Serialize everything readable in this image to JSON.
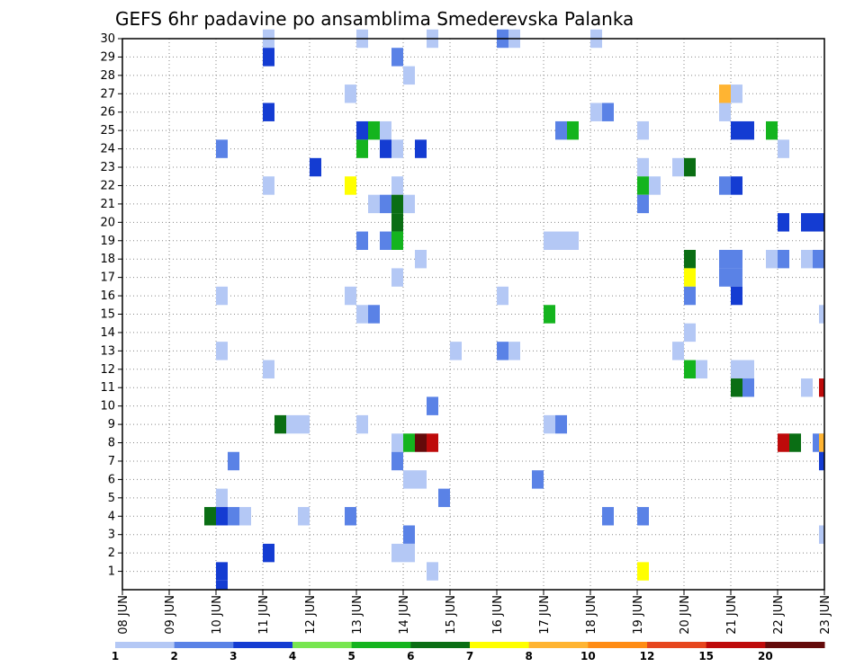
{
  "chart_data": {
    "type": "heatmap",
    "title": "GEFS 6hr padavine po ansamblima Smederevska Palanka",
    "xlabel": "",
    "ylabel": "",
    "x_tick_labels": [
      "08 JUN",
      "09 JUN",
      "10 JUN",
      "11 JUN",
      "12 JUN",
      "13 JUN",
      "14 JUN",
      "15 JUN",
      "16 JUN",
      "17 JUN",
      "18 JUN",
      "19 JUN",
      "20 JUN",
      "21 JUN",
      "22 JUN",
      "23 JUN"
    ],
    "x_range_days": [
      0,
      15
    ],
    "y_range": [
      0,
      30
    ],
    "y_tick_labels": [
      1,
      2,
      3,
      4,
      5,
      6,
      7,
      8,
      9,
      10,
      11,
      12,
      13,
      14,
      15,
      16,
      17,
      18,
      19,
      20,
      21,
      22,
      23,
      24,
      25,
      26,
      27,
      28,
      29,
      30
    ],
    "grid": true,
    "legend": {
      "placement": "bottom",
      "levels": [
        1,
        2,
        3,
        4,
        5,
        6,
        7,
        8,
        10,
        12,
        15,
        20
      ],
      "colors": [
        "#b4c8f5",
        "#5a82e6",
        "#143cd2",
        "#78e650",
        "#14b41e",
        "#0a6e14",
        "#ffff00",
        "#ffb432",
        "#ff8c14",
        "#e6461e",
        "#be0a0a",
        "#640a0a"
      ]
    },
    "cells": [
      {
        "member": 30,
        "day": 3.0,
        "value": 1
      },
      {
        "member": 30,
        "day": 5.0,
        "value": 1
      },
      {
        "member": 30,
        "day": 6.5,
        "value": 1
      },
      {
        "member": 30,
        "day": 8.0,
        "value": 2
      },
      {
        "member": 30,
        "day": 8.25,
        "value": 1
      },
      {
        "member": 30,
        "day": 10.0,
        "value": 1
      },
      {
        "member": 29,
        "day": 3.0,
        "value": 3
      },
      {
        "member": 29,
        "day": 5.75,
        "value": 2
      },
      {
        "member": 28,
        "day": 6.0,
        "value": 1
      },
      {
        "member": 27,
        "day": 4.75,
        "value": 1
      },
      {
        "member": 27,
        "day": 12.75,
        "value": 8
      },
      {
        "member": 27,
        "day": 13.0,
        "value": 1
      },
      {
        "member": 26,
        "day": 3.0,
        "value": 3
      },
      {
        "member": 26,
        "day": 10.0,
        "value": 1
      },
      {
        "member": 26,
        "day": 10.25,
        "value": 2
      },
      {
        "member": 26,
        "day": 12.75,
        "value": 1
      },
      {
        "member": 25,
        "day": 5.0,
        "value": 3
      },
      {
        "member": 25,
        "day": 5.25,
        "value": 5
      },
      {
        "member": 25,
        "day": 5.5,
        "value": 1
      },
      {
        "member": 25,
        "day": 9.25,
        "value": 2
      },
      {
        "member": 25,
        "day": 9.5,
        "value": 5
      },
      {
        "member": 25,
        "day": 11.0,
        "value": 1
      },
      {
        "member": 25,
        "day": 13.0,
        "value": 3
      },
      {
        "member": 25,
        "day": 13.25,
        "value": 3
      },
      {
        "member": 25,
        "day": 13.75,
        "value": 5
      },
      {
        "member": 24,
        "day": 2.0,
        "value": 2
      },
      {
        "member": 24,
        "day": 5.0,
        "value": 5
      },
      {
        "member": 24,
        "day": 5.5,
        "value": 3
      },
      {
        "member": 24,
        "day": 5.75,
        "value": 1
      },
      {
        "member": 24,
        "day": 6.25,
        "value": 3
      },
      {
        "member": 24,
        "day": 14.0,
        "value": 1
      },
      {
        "member": 23,
        "day": 4.0,
        "value": 3
      },
      {
        "member": 23,
        "day": 11.0,
        "value": 1
      },
      {
        "member": 23,
        "day": 11.75,
        "value": 1
      },
      {
        "member": 23,
        "day": 12.0,
        "value": 6
      },
      {
        "member": 22,
        "day": 3.0,
        "value": 1
      },
      {
        "member": 22,
        "day": 4.75,
        "value": 7
      },
      {
        "member": 22,
        "day": 5.75,
        "value": 1
      },
      {
        "member": 22,
        "day": 11.0,
        "value": 5
      },
      {
        "member": 22,
        "day": 11.25,
        "value": 1
      },
      {
        "member": 22,
        "day": 12.75,
        "value": 2
      },
      {
        "member": 22,
        "day": 13.0,
        "value": 3
      },
      {
        "member": 21,
        "day": 5.25,
        "value": 1
      },
      {
        "member": 21,
        "day": 5.5,
        "value": 2
      },
      {
        "member": 21,
        "day": 5.75,
        "value": 6
      },
      {
        "member": 21,
        "day": 6.0,
        "value": 1
      },
      {
        "member": 21,
        "day": 11.0,
        "value": 2
      },
      {
        "member": 20,
        "day": 5.75,
        "value": 6
      },
      {
        "member": 20,
        "day": 14.0,
        "value": 3
      },
      {
        "member": 20,
        "day": 14.5,
        "value": 3
      },
      {
        "member": 20,
        "day": 14.75,
        "value": 3
      },
      {
        "member": 19,
        "day": 5.0,
        "value": 2
      },
      {
        "member": 19,
        "day": 5.5,
        "value": 2
      },
      {
        "member": 19,
        "day": 5.75,
        "value": 5
      },
      {
        "member": 19,
        "day": 9.0,
        "value": 1
      },
      {
        "member": 19,
        "day": 9.25,
        "value": 1
      },
      {
        "member": 19,
        "day": 9.5,
        "value": 1
      },
      {
        "member": 18,
        "day": 6.25,
        "value": 1
      },
      {
        "member": 18,
        "day": 12.0,
        "value": 6
      },
      {
        "member": 18,
        "day": 12.75,
        "value": 2
      },
      {
        "member": 18,
        "day": 13.0,
        "value": 2
      },
      {
        "member": 18,
        "day": 13.75,
        "value": 1
      },
      {
        "member": 18,
        "day": 14.0,
        "value": 2
      },
      {
        "member": 18,
        "day": 14.5,
        "value": 1
      },
      {
        "member": 18,
        "day": 14.75,
        "value": 2
      },
      {
        "member": 17,
        "day": 5.75,
        "value": 1
      },
      {
        "member": 17,
        "day": 12.0,
        "value": 7
      },
      {
        "member": 17,
        "day": 12.75,
        "value": 2
      },
      {
        "member": 17,
        "day": 13.0,
        "value": 2
      },
      {
        "member": 16,
        "day": 2.0,
        "value": 1
      },
      {
        "member": 16,
        "day": 4.75,
        "value": 1
      },
      {
        "member": 16,
        "day": 8.0,
        "value": 1
      },
      {
        "member": 16,
        "day": 12.0,
        "value": 2
      },
      {
        "member": 16,
        "day": 13.0,
        "value": 3
      },
      {
        "member": 15,
        "day": 5.0,
        "value": 1
      },
      {
        "member": 15,
        "day": 5.25,
        "value": 2
      },
      {
        "member": 15,
        "day": 9.0,
        "value": 5
      },
      {
        "member": 15,
        "day": 15.0,
        "value": 1
      },
      {
        "member": 14,
        "day": 12.0,
        "value": 1
      },
      {
        "member": 13,
        "day": 2.0,
        "value": 1
      },
      {
        "member": 13,
        "day": 7.0,
        "value": 1
      },
      {
        "member": 13,
        "day": 8.0,
        "value": 2
      },
      {
        "member": 13,
        "day": 8.25,
        "value": 1
      },
      {
        "member": 13,
        "day": 11.75,
        "value": 1
      },
      {
        "member": 12,
        "day": 3.0,
        "value": 1
      },
      {
        "member": 12,
        "day": 12.0,
        "value": 5
      },
      {
        "member": 12,
        "day": 12.25,
        "value": 1
      },
      {
        "member": 12,
        "day": 13.0,
        "value": 1
      },
      {
        "member": 12,
        "day": 13.25,
        "value": 1
      },
      {
        "member": 11,
        "day": 13.0,
        "value": 6
      },
      {
        "member": 11,
        "day": 13.25,
        "value": 2
      },
      {
        "member": 11,
        "day": 14.5,
        "value": 1
      },
      {
        "member": 11,
        "day": 15.0,
        "value": 15
      },
      {
        "member": 10,
        "day": 6.5,
        "value": 2
      },
      {
        "member": 9,
        "day": 3.25,
        "value": 6
      },
      {
        "member": 9,
        "day": 3.5,
        "value": 1
      },
      {
        "member": 9,
        "day": 3.75,
        "value": 1
      },
      {
        "member": 9,
        "day": 5.0,
        "value": 1
      },
      {
        "member": 9,
        "day": 9.0,
        "value": 1
      },
      {
        "member": 9,
        "day": 9.25,
        "value": 2
      },
      {
        "member": 8,
        "day": 5.75,
        "value": 1
      },
      {
        "member": 8,
        "day": 6.0,
        "value": 5
      },
      {
        "member": 8,
        "day": 6.25,
        "value": 20
      },
      {
        "member": 8,
        "day": 6.5,
        "value": 15
      },
      {
        "member": 8,
        "day": 14.0,
        "value": 15
      },
      {
        "member": 8,
        "day": 14.25,
        "value": 6
      },
      {
        "member": 8,
        "day": 14.75,
        "value": 2
      },
      {
        "member": 8,
        "day": 15.0,
        "value": 8
      },
      {
        "member": 7,
        "day": 2.25,
        "value": 2
      },
      {
        "member": 7,
        "day": 5.75,
        "value": 2
      },
      {
        "member": 7,
        "day": 15.0,
        "value": 3
      },
      {
        "member": 6,
        "day": 6.0,
        "value": 1
      },
      {
        "member": 6,
        "day": 6.25,
        "value": 1
      },
      {
        "member": 6,
        "day": 8.75,
        "value": 2
      },
      {
        "member": 5,
        "day": 2.0,
        "value": 1
      },
      {
        "member": 5,
        "day": 6.75,
        "value": 2
      },
      {
        "member": 4,
        "day": 1.75,
        "value": 6
      },
      {
        "member": 4,
        "day": 2.0,
        "value": 3
      },
      {
        "member": 4,
        "day": 2.25,
        "value": 2
      },
      {
        "member": 4,
        "day": 2.5,
        "value": 1
      },
      {
        "member": 4,
        "day": 3.75,
        "value": 1
      },
      {
        "member": 4,
        "day": 4.75,
        "value": 2
      },
      {
        "member": 4,
        "day": 10.25,
        "value": 2
      },
      {
        "member": 4,
        "day": 11.0,
        "value": 2
      },
      {
        "member": 3,
        "day": 6.0,
        "value": 2
      },
      {
        "member": 3,
        "day": 15.0,
        "value": 1
      },
      {
        "member": 2,
        "day": 3.0,
        "value": 3
      },
      {
        "member": 2,
        "day": 5.75,
        "value": 1
      },
      {
        "member": 2,
        "day": 6.0,
        "value": 1
      },
      {
        "member": 1,
        "day": 2.0,
        "value": 3
      },
      {
        "member": 1,
        "day": 6.5,
        "value": 1
      },
      {
        "member": 1,
        "day": 11.0,
        "value": 7
      },
      {
        "member": 0,
        "day": 2.0,
        "value": 3
      }
    ]
  }
}
